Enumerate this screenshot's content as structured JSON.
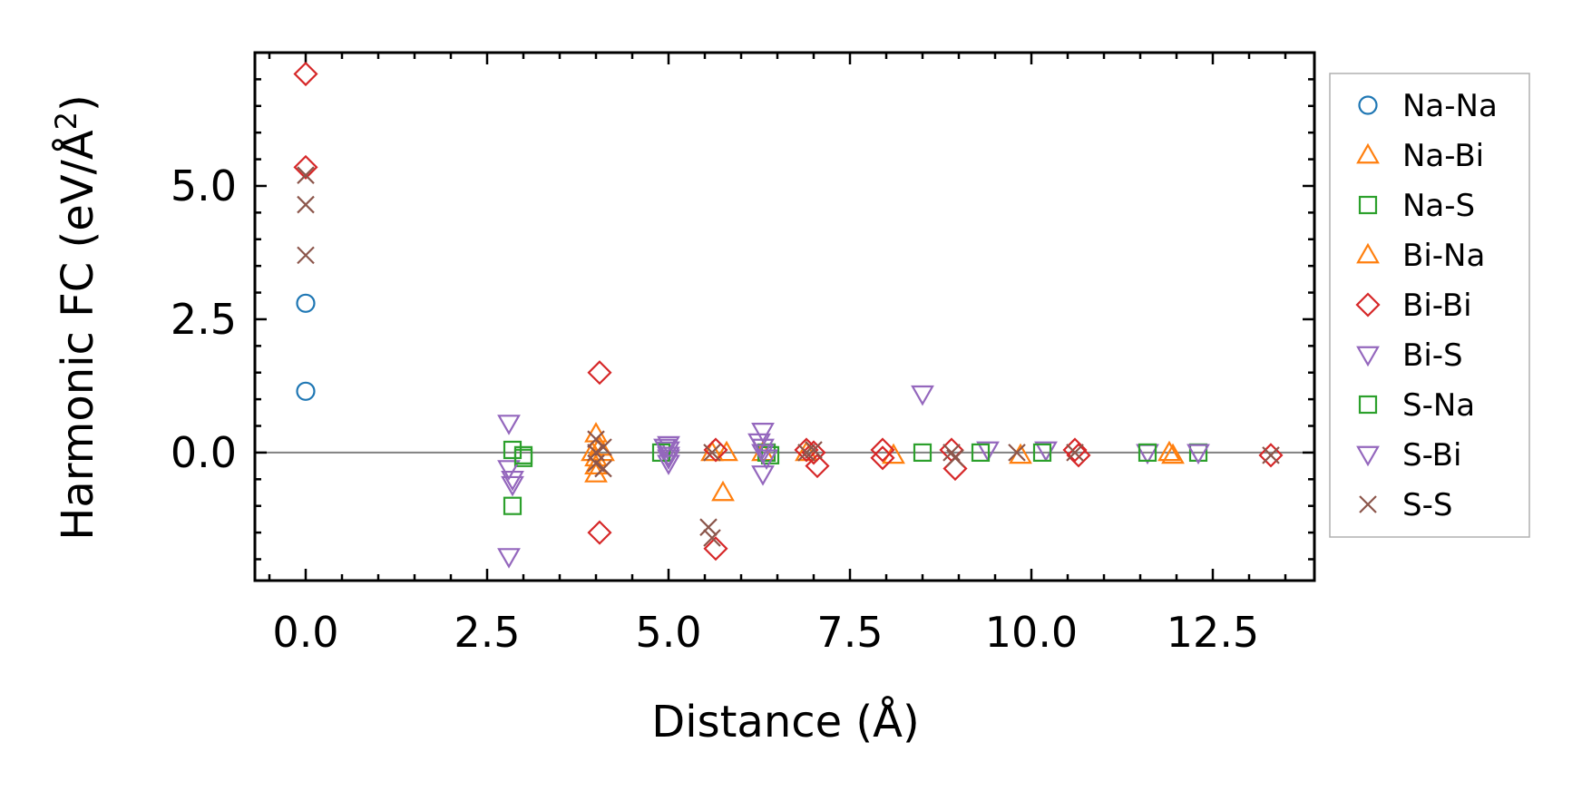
{
  "chart_data": {
    "type": "scatter",
    "xlabel": "Distance (Å)",
    "ylabel_main": "Harmonic FC (eV/Å",
    "ylabel_sup": "2",
    "ylabel_close": ")",
    "xlim": [
      -0.7,
      13.9
    ],
    "ylim": [
      -2.4,
      7.5
    ],
    "xticks": [
      {
        "value": 0.0,
        "label": "0.0"
      },
      {
        "value": 2.5,
        "label": "2.5"
      },
      {
        "value": 5.0,
        "label": "5.0"
      },
      {
        "value": 7.5,
        "label": "7.5"
      },
      {
        "value": 10.0,
        "label": "10.0"
      },
      {
        "value": 12.5,
        "label": "12.5"
      }
    ],
    "yticks": [
      {
        "value": 0.0,
        "label": "0.0"
      },
      {
        "value": 2.5,
        "label": "2.5"
      },
      {
        "value": 5.0,
        "label": "5.0"
      }
    ],
    "reference_line_y": 0,
    "legend_position": "outside-right",
    "series": [
      {
        "name": "Na-Na",
        "marker": "circle",
        "color": "#1f77b4",
        "points": [
          [
            0,
            2.8
          ],
          [
            0,
            1.15
          ]
        ]
      },
      {
        "name": "Na-Bi",
        "marker": "triangle-up",
        "color": "#ff7f0e",
        "points": [
          [
            4.0,
            0.35
          ],
          [
            4.0,
            -0.1
          ],
          [
            4.0,
            -0.25
          ],
          [
            4.0,
            -0.4
          ],
          [
            4.05,
            0.1
          ],
          [
            5.6,
            0.0
          ],
          [
            5.75,
            -0.75
          ],
          [
            5.8,
            0.0
          ],
          [
            6.3,
            0.0
          ],
          [
            8.1,
            -0.05
          ],
          [
            9.85,
            -0.05
          ],
          [
            11.95,
            -0.05
          ]
        ]
      },
      {
        "name": "Na-S",
        "marker": "square",
        "color": "#2ca02c",
        "points": [
          [
            2.85,
            0.05
          ],
          [
            2.85,
            -1.0
          ],
          [
            3.0,
            -0.1
          ],
          [
            6.4,
            -0.05
          ],
          [
            8.5,
            0.0
          ],
          [
            12.3,
            0.0
          ]
        ]
      },
      {
        "name": "Bi-Na",
        "marker": "triangle-up",
        "color": "#ff7f0e",
        "points": [
          [
            3.95,
            0.0
          ],
          [
            4.1,
            0.0
          ],
          [
            6.9,
            0.0
          ],
          [
            11.9,
            0.0
          ]
        ]
      },
      {
        "name": "Bi-Bi",
        "marker": "diamond",
        "color": "#d62728",
        "points": [
          [
            0,
            7.1
          ],
          [
            0,
            5.35
          ],
          [
            4.05,
            1.5
          ],
          [
            4.05,
            -1.5
          ],
          [
            5.65,
            0.05
          ],
          [
            5.65,
            -1.8
          ],
          [
            6.9,
            0.05
          ],
          [
            7.0,
            0.0
          ],
          [
            7.05,
            -0.25
          ],
          [
            7.95,
            0.05
          ],
          [
            7.95,
            -0.1
          ],
          [
            8.9,
            0.05
          ],
          [
            8.95,
            -0.3
          ],
          [
            10.6,
            0.05
          ],
          [
            10.65,
            -0.05
          ],
          [
            13.3,
            -0.05
          ]
        ]
      },
      {
        "name": "Bi-S",
        "marker": "triangle-down",
        "color": "#9467bd",
        "points": [
          [
            2.8,
            0.55
          ],
          [
            2.8,
            -0.3
          ],
          [
            2.85,
            -0.6
          ],
          [
            2.8,
            -1.95
          ],
          [
            5.0,
            0.15
          ],
          [
            5.0,
            0.05
          ],
          [
            5.0,
            -0.1
          ],
          [
            6.3,
            0.4
          ],
          [
            6.3,
            -0.4
          ],
          [
            8.5,
            1.1
          ],
          [
            9.4,
            0.05
          ],
          [
            10.2,
            0.05
          ],
          [
            11.6,
            0.0
          ],
          [
            12.3,
            0.0
          ]
        ]
      },
      {
        "name": "S-Na",
        "marker": "square",
        "color": "#2ca02c",
        "points": [
          [
            3.0,
            -0.05
          ],
          [
            4.9,
            0.0
          ],
          [
            6.35,
            0.0
          ],
          [
            9.3,
            0.0
          ],
          [
            10.15,
            0.0
          ],
          [
            11.6,
            0.0
          ]
        ]
      },
      {
        "name": "S-Bi",
        "marker": "triangle-down",
        "color": "#9467bd",
        "points": [
          [
            2.85,
            -0.5
          ],
          [
            4.95,
            0.1
          ],
          [
            5.0,
            -0.05
          ],
          [
            5.0,
            -0.2
          ],
          [
            6.25,
            0.2
          ],
          [
            6.3,
            0.1
          ],
          [
            6.3,
            0.0
          ],
          [
            6.35,
            -0.1
          ]
        ]
      },
      {
        "name": "S-S",
        "marker": "x",
        "color": "#8c564b",
        "points": [
          [
            0,
            5.2
          ],
          [
            0,
            4.65
          ],
          [
            0,
            3.7
          ],
          [
            4.0,
            0.25
          ],
          [
            4.0,
            0.0
          ],
          [
            4.0,
            -0.2
          ],
          [
            4.1,
            0.1
          ],
          [
            4.1,
            -0.3
          ],
          [
            5.55,
            -1.4
          ],
          [
            5.6,
            -1.6
          ],
          [
            5.6,
            0.0
          ],
          [
            6.9,
            0.0
          ],
          [
            7.0,
            0.05
          ],
          [
            8.9,
            0.0
          ],
          [
            8.95,
            -0.1
          ],
          [
            9.8,
            0.0
          ],
          [
            10.6,
            0.0
          ],
          [
            13.3,
            -0.05
          ]
        ]
      }
    ]
  }
}
